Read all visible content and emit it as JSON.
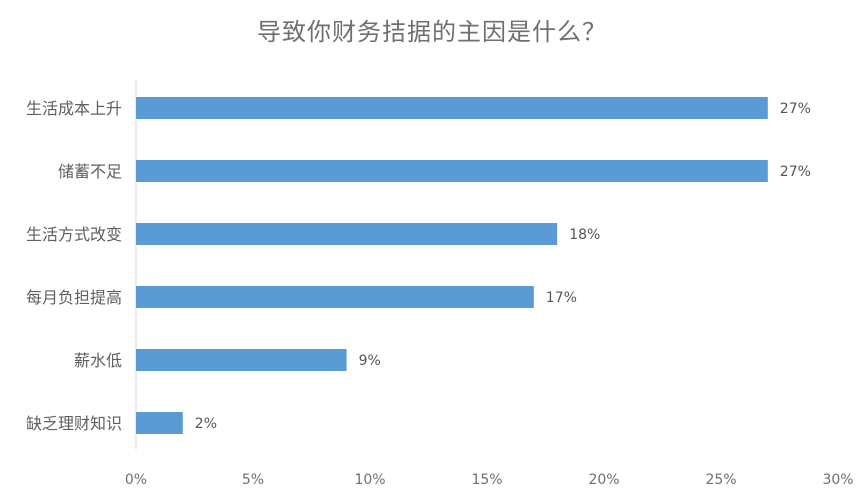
{
  "chart_data": {
    "type": "bar",
    "orientation": "horizontal",
    "title": "导致你财务拮据的主因是什么？",
    "categories": [
      "生活成本上升",
      "储蓄不足",
      "生活方式改变",
      "每月负担提高",
      "薪水低",
      "缺乏理财知识"
    ],
    "values": [
      27,
      27,
      18,
      17,
      9,
      2
    ],
    "data_labels": [
      "27%",
      "27%",
      "18%",
      "17%",
      "9%",
      "2%"
    ],
    "xlim": [
      0,
      30
    ],
    "x_ticks": [
      0,
      5,
      10,
      15,
      20,
      25,
      30
    ],
    "x_tick_labels": [
      "0%",
      "5%",
      "10%",
      "15%",
      "20%",
      "25%",
      "30%"
    ],
    "bar_color": "#5B9BD5",
    "gridlines": false,
    "legend": "none"
  }
}
